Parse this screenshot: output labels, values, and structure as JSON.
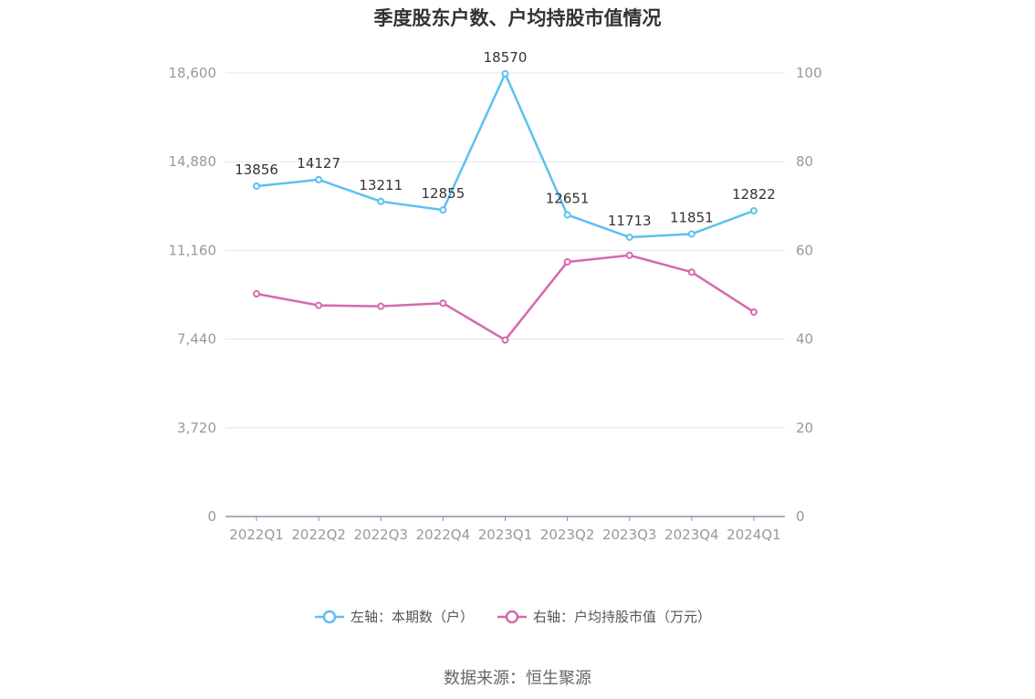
{
  "chart_data": {
    "type": "line",
    "title": "季度股东户数、户均持股市值情况",
    "categories": [
      "2022Q1",
      "2022Q2",
      "2022Q3",
      "2022Q4",
      "2023Q1",
      "2023Q2",
      "2023Q3",
      "2023Q4",
      "2024Q1"
    ],
    "left_axis": {
      "ticks": [
        "0",
        "3,720",
        "7,440",
        "11,160",
        "14,880",
        "18,600"
      ],
      "ylim": [
        0,
        18600
      ]
    },
    "right_axis": {
      "ticks": [
        "0",
        "20",
        "40",
        "60",
        "80",
        "100"
      ],
      "ylim": [
        0,
        100
      ]
    },
    "grid": true,
    "legend_position": "bottom",
    "series": [
      {
        "name": "左轴：本期数（户）",
        "axis": "left",
        "color": "#5bc0f2",
        "values": [
          13856,
          14127,
          13211,
          12855,
          18570,
          12651,
          11713,
          11851,
          12822
        ],
        "labels": [
          "13856",
          "14127",
          "13211",
          "12855",
          "18570",
          "12651",
          "11713",
          "11851",
          "12822"
        ]
      },
      {
        "name": "右轴：户均持股市值（万元）",
        "axis": "right",
        "color": "#d46aad",
        "values": [
          50.2,
          47.6,
          47.4,
          48.1,
          39.8,
          57.4,
          58.9,
          55.1,
          46.1
        ]
      }
    ]
  },
  "source": "数据来源：恒生聚源"
}
